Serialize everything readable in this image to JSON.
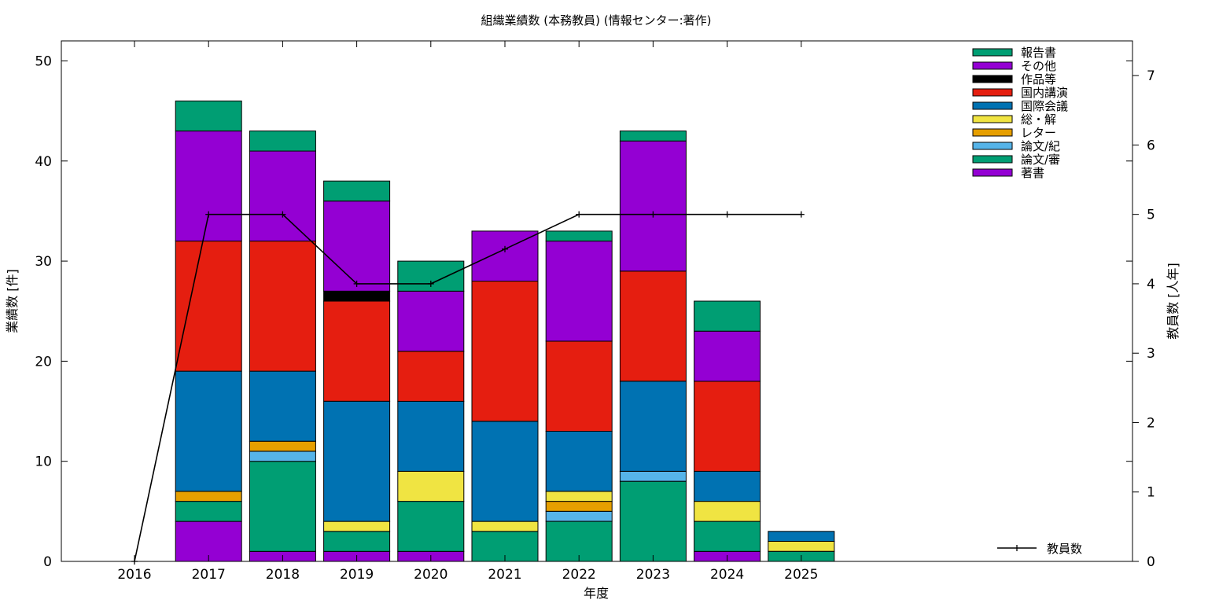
{
  "chart_data": {
    "type": "bar",
    "stacked": true,
    "title": "組織業績数 (本務教員) (情報センター:著作)",
    "xlabel": "年度",
    "ylabel": "業績数 [件]",
    "y2label": "教員数 [人年]",
    "categories": [
      "2016",
      "2017",
      "2018",
      "2019",
      "2020",
      "2021",
      "2022",
      "2023",
      "2024",
      "2025"
    ],
    "ylim": [
      0,
      52
    ],
    "yticks": [
      0,
      10,
      20,
      30,
      40,
      50
    ],
    "y2lim": [
      0,
      7.5
    ],
    "y2ticks": [
      0,
      1,
      2,
      3,
      4,
      5,
      6,
      7
    ],
    "grid": false,
    "legend_position": "top-right",
    "series": [
      {
        "name": "著書",
        "color": "#9400d3",
        "values": [
          0,
          4,
          1,
          1,
          1,
          0,
          0,
          0,
          1,
          0
        ]
      },
      {
        "name": "論文/審",
        "color": "#009e73",
        "values": [
          0,
          2,
          9,
          2,
          5,
          3,
          4,
          8,
          3,
          1
        ]
      },
      {
        "name": "論文/紀",
        "color": "#56b4e9",
        "values": [
          0,
          0,
          1,
          0,
          0,
          0,
          1,
          1,
          0,
          0
        ]
      },
      {
        "name": "レター",
        "color": "#e69f00",
        "values": [
          0,
          1,
          1,
          0,
          0,
          0,
          1,
          0,
          0,
          0
        ]
      },
      {
        "name": "総・解",
        "color": "#f0e442",
        "values": [
          0,
          0,
          0,
          1,
          3,
          1,
          1,
          0,
          2,
          1
        ]
      },
      {
        "name": "国際会議",
        "color": "#0072b2",
        "values": [
          0,
          12,
          7,
          12,
          7,
          10,
          6,
          9,
          3,
          1
        ]
      },
      {
        "name": "国内講演",
        "color": "#e51e10",
        "values": [
          0,
          13,
          13,
          10,
          5,
          14,
          9,
          11,
          9,
          0
        ]
      },
      {
        "name": "作品等",
        "color": "#000000",
        "values": [
          0,
          0,
          0,
          1,
          0,
          0,
          0,
          0,
          0,
          0
        ]
      },
      {
        "name": "その他",
        "color": "#9400d3",
        "values": [
          0,
          11,
          9,
          9,
          6,
          5,
          10,
          13,
          5,
          0
        ]
      },
      {
        "name": "報告書",
        "color": "#009e73",
        "values": [
          0,
          3,
          2,
          2,
          3,
          0,
          1,
          1,
          3,
          0
        ]
      }
    ],
    "line": {
      "name": "教員数",
      "axis": "right",
      "color": "#000000",
      "values": [
        0,
        5,
        5,
        4,
        4,
        4.5,
        5,
        5,
        5,
        5
      ]
    }
  }
}
